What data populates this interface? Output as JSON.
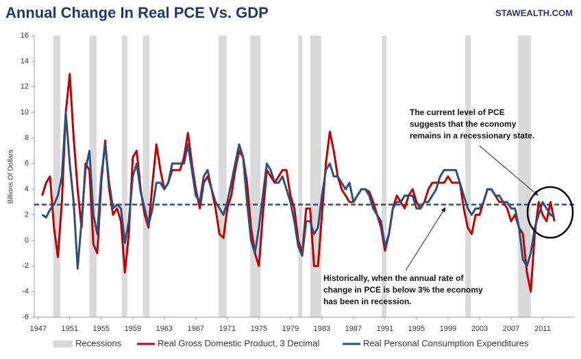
{
  "chart_data": {
    "type": "line",
    "title": "Annual Change In Real PCE Vs. GDP",
    "source": "STAWEALTH.COM",
    "y_label": "Billions Of Dollars",
    "x": [
      1947.5,
      1948,
      1948.5,
      1949,
      1949.5,
      1950,
      1950.5,
      1951,
      1951.5,
      1952,
      1952.5,
      1953,
      1953.5,
      1954,
      1954.5,
      1955,
      1955.5,
      1956,
      1956.5,
      1957,
      1957.5,
      1958,
      1958.5,
      1959,
      1959.5,
      1960,
      1960.5,
      1961,
      1961.5,
      1962,
      1962.5,
      1963,
      1963.5,
      1964,
      1964.5,
      1965,
      1965.5,
      1966,
      1966.5,
      1967,
      1967.5,
      1968,
      1968.5,
      1969,
      1969.5,
      1970,
      1970.5,
      1971,
      1971.5,
      1972,
      1972.5,
      1973,
      1973.5,
      1974,
      1974.5,
      1975,
      1975.5,
      1976,
      1976.5,
      1977,
      1977.5,
      1978,
      1978.5,
      1979,
      1979.5,
      1980,
      1980.5,
      1981,
      1981.5,
      1982,
      1982.5,
      1983,
      1983.5,
      1984,
      1984.5,
      1985,
      1985.5,
      1986,
      1986.5,
      1987,
      1987.5,
      1988,
      1988.5,
      1989,
      1989.5,
      1990,
      1990.5,
      1991,
      1991.5,
      1992,
      1992.5,
      1993,
      1993.5,
      1994,
      1994.5,
      1995,
      1995.5,
      1996,
      1996.5,
      1997,
      1997.5,
      1998,
      1998.5,
      1999,
      1999.5,
      2000,
      2000.5,
      2001,
      2001.5,
      2002,
      2002.5,
      2003,
      2003.5,
      2004,
      2004.5,
      2005,
      2005.5,
      2006,
      2006.5,
      2007,
      2007.5,
      2008,
      2008.5,
      2009,
      2009.5,
      2010,
      2010.5,
      2011,
      2011.5,
      2012,
      2012.5
    ],
    "series": [
      {
        "name": "Real Gross Domestic Product, 3 Decimal",
        "color": "#c00000",
        "values": [
          3.5,
          4.5,
          5.0,
          1.0,
          -1.3,
          3.0,
          10.0,
          13.0,
          8.0,
          4.0,
          1.0,
          6.0,
          5.5,
          -0.3,
          -1.0,
          4.5,
          7.8,
          4.0,
          2.0,
          2.5,
          1.5,
          -2.5,
          0.5,
          6.5,
          7.0,
          4.0,
          2.0,
          1.0,
          4.5,
          7.5,
          5.5,
          4.0,
          4.5,
          5.5,
          5.5,
          5.5,
          6.5,
          8.4,
          6.0,
          4.0,
          2.5,
          4.5,
          5.0,
          4.0,
          2.5,
          0.5,
          0.2,
          2.5,
          3.5,
          5.5,
          7.0,
          6.5,
          4.5,
          1.0,
          -1.0,
          -2.0,
          2.0,
          5.5,
          5.0,
          4.5,
          5.0,
          5.5,
          5.5,
          3.5,
          2.5,
          0.0,
          -1.0,
          2.5,
          2.5,
          -2.0,
          -2.0,
          2.0,
          6.0,
          8.5,
          7.0,
          5.0,
          4.0,
          3.5,
          3.0,
          3.0,
          3.5,
          4.0,
          4.0,
          3.8,
          3.0,
          2.0,
          1.0,
          -0.8,
          0.5,
          2.5,
          3.5,
          3.0,
          2.5,
          3.5,
          4.0,
          3.0,
          2.5,
          3.0,
          4.0,
          4.5,
          4.5,
          4.5,
          4.5,
          5.0,
          4.5,
          4.5,
          4.5,
          2.5,
          1.0,
          0.5,
          2.0,
          2.0,
          3.0,
          4.0,
          4.0,
          3.5,
          3.0,
          3.0,
          2.5,
          1.5,
          2.0,
          1.0,
          0.5,
          -2.5,
          -4.0,
          0.5,
          3.0,
          2.0,
          1.5,
          3.0,
          1.5
        ]
      },
      {
        "name": "Real Personal Consumption Expenditures",
        "color": "#2e4d7b",
        "values": [
          2.0,
          1.8,
          2.4,
          2.8,
          3.5,
          5.0,
          10.0,
          6.0,
          3.0,
          -2.2,
          1.5,
          5.5,
          7.0,
          2.0,
          0.5,
          5.0,
          7.5,
          4.5,
          2.5,
          2.8,
          2.5,
          -0.2,
          1.5,
          5.0,
          6.0,
          3.8,
          2.5,
          1.2,
          2.5,
          4.5,
          4.5,
          4.0,
          4.5,
          6.0,
          6.0,
          6.0,
          6.0,
          7.5,
          5.5,
          3.5,
          3.0,
          5.0,
          5.5,
          4.0,
          3.0,
          2.5,
          2.0,
          3.0,
          4.5,
          6.0,
          7.5,
          6.5,
          3.0,
          0.0,
          -1.0,
          1.0,
          3.5,
          6.0,
          5.5,
          4.5,
          4.5,
          5.0,
          4.0,
          3.0,
          1.5,
          -0.5,
          -1.2,
          1.5,
          1.5,
          0.5,
          1.0,
          3.5,
          5.5,
          6.0,
          5.0,
          5.0,
          4.5,
          4.0,
          4.5,
          3.0,
          3.5,
          4.0,
          4.0,
          3.5,
          2.5,
          2.0,
          1.5,
          -0.5,
          0.5,
          2.5,
          3.0,
          3.0,
          3.5,
          3.5,
          3.5,
          2.5,
          2.5,
          3.0,
          3.0,
          3.5,
          4.0,
          5.0,
          5.5,
          5.5,
          5.5,
          5.5,
          4.5,
          3.5,
          2.5,
          2.0,
          2.5,
          2.5,
          3.0,
          4.0,
          4.0,
          3.5,
          3.5,
          3.0,
          3.0,
          2.5,
          2.5,
          1.0,
          -1.5,
          -2.0,
          -1.0,
          1.0,
          2.0,
          3.0,
          2.5,
          2.0,
          1.8
        ]
      }
    ],
    "recessions": {
      "name": "Recessions",
      "color": "#d9d9d9",
      "periods": [
        [
          1948.9,
          1949.8
        ],
        [
          1953.5,
          1954.4
        ],
        [
          1957.6,
          1958.3
        ],
        [
          1960.3,
          1961.1
        ],
        [
          1969.9,
          1970.9
        ],
        [
          1973.9,
          1975.2
        ],
        [
          1980.0,
          1980.5
        ],
        [
          1981.5,
          1982.9
        ],
        [
          1990.6,
          1991.2
        ],
        [
          2001.2,
          2001.9
        ],
        [
          2007.9,
          2009.5
        ]
      ]
    },
    "reference_line": {
      "value": 2.8,
      "color": "#2e4d7b",
      "dashed": true
    },
    "annotations": [
      [
        "The current level of PCE",
        "suggests that the economy",
        "remains in a recessionary state."
      ],
      [
        "Historically, when the annual rate of",
        "change in PCE is below 3% the economy",
        "has been in recession."
      ]
    ],
    "xlim": [
      1946.5,
      2015
    ],
    "xticks": [
      1947,
      1951,
      1955,
      1959,
      1963,
      1967,
      1971,
      1975,
      1979,
      1983,
      1987,
      1991,
      1995,
      1999,
      2003,
      2007,
      2011
    ],
    "ylim": [
      -6,
      16
    ],
    "yticks": [
      -6,
      -4,
      -2,
      0,
      2,
      4,
      6,
      8,
      10,
      12,
      14,
      16
    ]
  }
}
